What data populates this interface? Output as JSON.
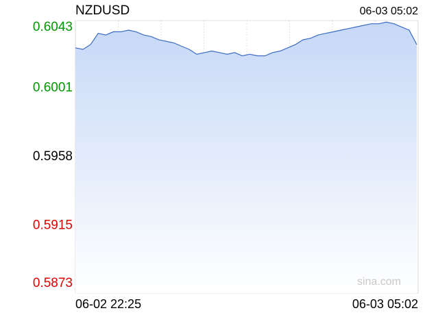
{
  "chart_data": {
    "type": "area-line",
    "title": "NZDUSD",
    "timestamp": "06-03 05:02",
    "x_start_label": "06-02 22:25",
    "x_end_label": "06-03 05:02",
    "watermark": "sina.com",
    "color": "#3a6bc4",
    "ylim": [
      0.5873,
      0.6043
    ],
    "yticks": [
      0.5873,
      0.5915,
      0.5958,
      0.6001,
      0.6043
    ],
    "ytick_colors": [
      "#e00000",
      "#e00000",
      "#000000",
      "#009900",
      "#009900"
    ],
    "values": [
      0.6026,
      0.6025,
      0.6028,
      0.6035,
      0.6034,
      0.6036,
      0.6036,
      0.6037,
      0.6036,
      0.6034,
      0.6033,
      0.6031,
      0.603,
      0.6029,
      0.6027,
      0.6025,
      0.6022,
      0.6023,
      0.6024,
      0.6023,
      0.6022,
      0.6023,
      0.6021,
      0.6022,
      0.6021,
      0.6021,
      0.6023,
      0.6024,
      0.6026,
      0.6028,
      0.6031,
      0.6032,
      0.6034,
      0.6035,
      0.6036,
      0.6037,
      0.6038,
      0.6039,
      0.604,
      0.6041,
      0.6041,
      0.6042,
      0.6041,
      0.6039,
      0.6037,
      0.6028
    ]
  }
}
